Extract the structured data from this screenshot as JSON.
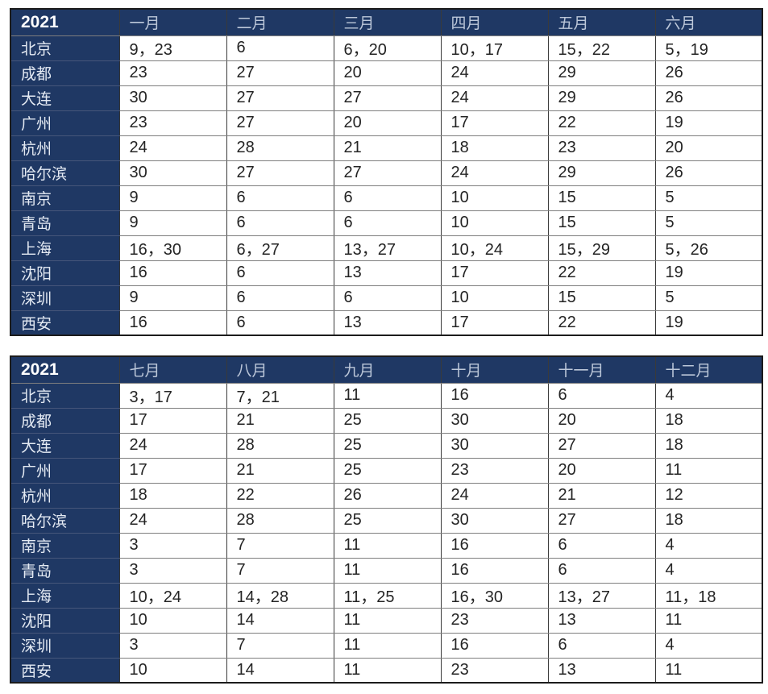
{
  "colors": {
    "header_bg": "#1f3864",
    "year_text": "#ffffff",
    "month_text": "#bcc7d9",
    "city_text": "#e4eaf3",
    "value_text": "#242424",
    "cell_bg": "#ffffff"
  },
  "tables": [
    {
      "year_label": "2021",
      "month_headers": [
        "一月",
        "二月",
        "三月",
        "四月",
        "五月",
        "六月"
      ],
      "rows": [
        {
          "city": "北京",
          "values": [
            "9，23",
            "6",
            "6，20",
            "10，17",
            "15，22",
            "5，19"
          ]
        },
        {
          "city": "成都",
          "values": [
            "23",
            "27",
            "20",
            "24",
            "29",
            "26"
          ]
        },
        {
          "city": "大连",
          "values": [
            "30",
            "27",
            "27",
            "24",
            "29",
            "26"
          ]
        },
        {
          "city": "广州",
          "values": [
            "23",
            "27",
            "20",
            "17",
            "22",
            "19"
          ]
        },
        {
          "city": "杭州",
          "values": [
            "24",
            "28",
            "21",
            "18",
            "23",
            "20"
          ]
        },
        {
          "city": "哈尔滨",
          "values": [
            "30",
            "27",
            "27",
            "24",
            "29",
            "26"
          ]
        },
        {
          "city": "南京",
          "values": [
            "9",
            "6",
            "6",
            "10",
            "15",
            "5"
          ]
        },
        {
          "city": "青岛",
          "values": [
            "9",
            "6",
            "6",
            "10",
            "15",
            "5"
          ]
        },
        {
          "city": "上海",
          "values": [
            "16，30",
            "6，27",
            "13，27",
            "10，24",
            "15，29",
            "5，26"
          ]
        },
        {
          "city": "沈阳",
          "values": [
            "16",
            "6",
            "13",
            "17",
            "22",
            "19"
          ]
        },
        {
          "city": "深圳",
          "values": [
            "9",
            "6",
            "6",
            "10",
            "15",
            "5"
          ]
        },
        {
          "city": "西安",
          "values": [
            "16",
            "6",
            "13",
            "17",
            "22",
            "19"
          ]
        }
      ]
    },
    {
      "year_label": "2021",
      "month_headers": [
        "七月",
        "八月",
        "九月",
        "十月",
        "十一月",
        "十二月"
      ],
      "rows": [
        {
          "city": "北京",
          "values": [
            "3，17",
            "7，21",
            "11",
            "16",
            "6",
            "4"
          ]
        },
        {
          "city": "成都",
          "values": [
            "17",
            "21",
            "25",
            "30",
            "20",
            "18"
          ]
        },
        {
          "city": "大连",
          "values": [
            "24",
            "28",
            "25",
            "30",
            "27",
            "18"
          ]
        },
        {
          "city": "广州",
          "values": [
            "17",
            "21",
            "25",
            "23",
            "20",
            "11"
          ]
        },
        {
          "city": "杭州",
          "values": [
            "18",
            "22",
            "26",
            "24",
            "21",
            "12"
          ]
        },
        {
          "city": "哈尔滨",
          "values": [
            "24",
            "28",
            "25",
            "30",
            "27",
            "18"
          ]
        },
        {
          "city": "南京",
          "values": [
            "3",
            "7",
            "11",
            "16",
            "6",
            "4"
          ]
        },
        {
          "city": "青岛",
          "values": [
            "3",
            "7",
            "11",
            "16",
            "6",
            "4"
          ]
        },
        {
          "city": "上海",
          "values": [
            "10，24",
            "14，28",
            "11，25",
            "16，30",
            "13，27",
            "11，18"
          ]
        },
        {
          "city": "沈阳",
          "values": [
            "10",
            "14",
            "11",
            "23",
            "13",
            "11"
          ]
        },
        {
          "city": "深圳",
          "values": [
            "3",
            "7",
            "11",
            "16",
            "6",
            "4"
          ]
        },
        {
          "city": "西安",
          "values": [
            "10",
            "14",
            "11",
            "23",
            "13",
            "11"
          ]
        }
      ]
    }
  ]
}
